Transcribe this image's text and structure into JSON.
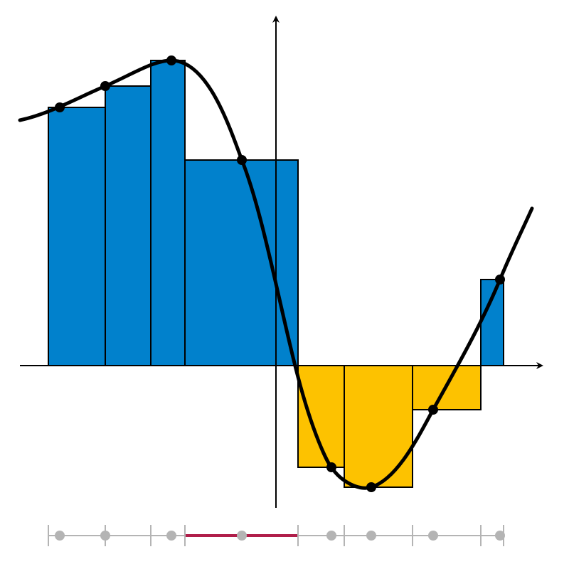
{
  "diagram": {
    "kind": "riemann-sum",
    "colors": {
      "positive": "#0181cc",
      "negative": "#fdc200",
      "curve": "#000000",
      "highlight": "#b01e4a",
      "partition": "#b4b4b4",
      "background": "#ffffff"
    },
    "positive_bars": 5,
    "negative_bars": 3,
    "sample_points": 8,
    "partition_ticks": 9
  }
}
